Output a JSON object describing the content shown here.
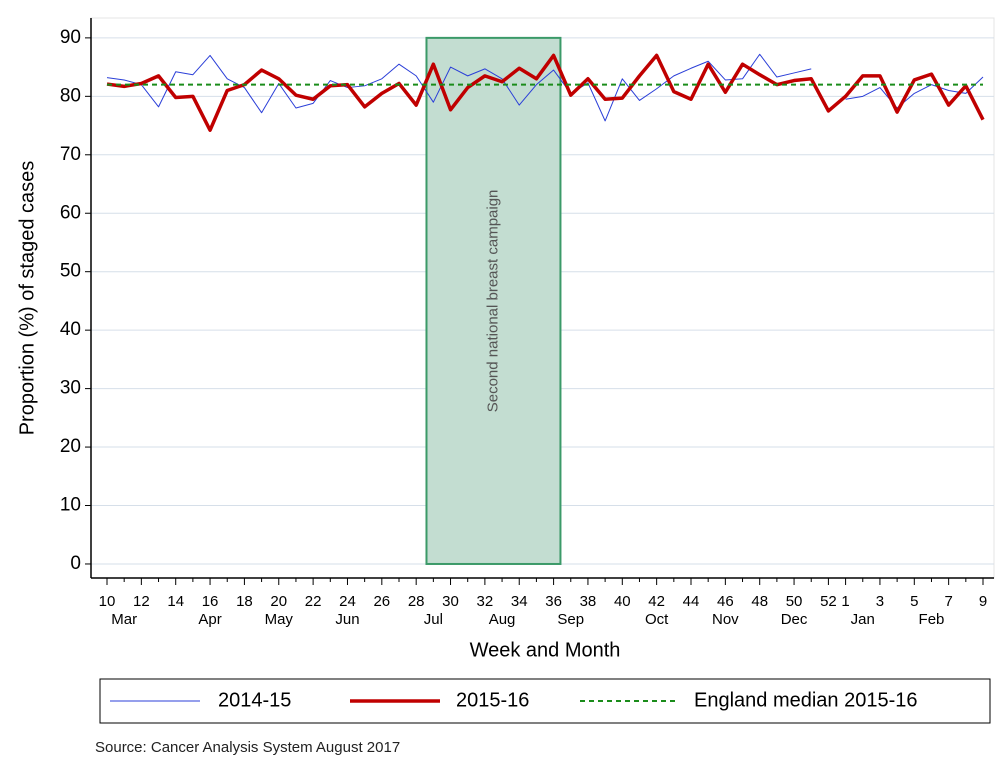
{
  "chart_data": {
    "type": "line",
    "x_label": "Week and Month",
    "y_label": "Proportion (%) of staged cases",
    "source": "Source: Cancer Analysis System August 2017",
    "categories": [
      "10",
      null,
      "12",
      null,
      "14",
      null,
      "16",
      null,
      "18",
      null,
      "20",
      null,
      "22",
      null,
      "24",
      null,
      "26",
      null,
      "28",
      null,
      "30",
      null,
      "32",
      null,
      "34",
      null,
      "36",
      null,
      "38",
      null,
      "40",
      null,
      "42",
      null,
      "44",
      null,
      "46",
      null,
      "48",
      null,
      "50",
      null,
      "52",
      "1",
      null,
      "3",
      null,
      "5",
      null,
      "7",
      null,
      "9"
    ],
    "months": [
      null,
      "Mar",
      null,
      null,
      null,
      null,
      "Apr",
      null,
      null,
      null,
      "May",
      null,
      null,
      null,
      "Jun",
      null,
      null,
      null,
      null,
      "Jul",
      null,
      null,
      null,
      "Aug",
      null,
      null,
      null,
      "Sep",
      null,
      null,
      null,
      null,
      "Oct",
      null,
      null,
      null,
      "Nov",
      null,
      null,
      null,
      "Dec",
      null,
      null,
      null,
      "Jan",
      null,
      null,
      null,
      "Feb",
      null,
      null,
      null
    ],
    "series": [
      {
        "name": "2014-15",
        "color": "#2b3fd8",
        "width": 1,
        "values": [
          83.2,
          82.8,
          82,
          78.2,
          84.2,
          83.7,
          87,
          83,
          81.5,
          77.2,
          82.2,
          78,
          78.8,
          82.7,
          81.5,
          81.8,
          83,
          85.5,
          83.5,
          79,
          85,
          83.5,
          84.7,
          83,
          78.5,
          82,
          84.5,
          80.5,
          82.3,
          75.8,
          83,
          79.3,
          81.3,
          83.5,
          84.8,
          86,
          82.8,
          83,
          87.2,
          83.3,
          84,
          84.7,
          null,
          79.5,
          80,
          81.5,
          78,
          80.5,
          82,
          81,
          80.5,
          83.3
        ]
      },
      {
        "name": "2015-16",
        "color": "#c00000",
        "width": 3.5,
        "values": [
          82.1,
          81.7,
          82.2,
          83.5,
          79.8,
          80,
          74.2,
          81,
          82,
          84.5,
          83,
          80.2,
          79.5,
          81.8,
          82,
          78.2,
          80.5,
          82.2,
          78.5,
          85.5,
          77.7,
          81.5,
          83.5,
          82.5,
          84.8,
          83,
          87,
          80.2,
          83,
          79.5,
          79.7,
          83.5,
          87,
          80.8,
          79.5,
          85.5,
          80.7,
          85.5,
          83.7,
          82,
          82.7,
          83,
          77.5,
          80,
          83.5,
          83.5,
          77.3,
          82.8,
          83.8,
          78.5,
          81.8,
          76
        ]
      },
      {
        "name": "England median 2015-16",
        "color": "#1a8c1a",
        "width": 2,
        "dashed": true,
        "value": 82
      }
    ],
    "annotation": {
      "text": "Second national breast campaign",
      "x_span": [
        18.6,
        26.4
      ],
      "y_span": [
        0,
        90
      ],
      "color": "#c3ddd1",
      "edge": "#3b9a68"
    },
    "ylim": [
      -2.4,
      93.4
    ],
    "yticks": [
      0,
      10,
      20,
      30,
      40,
      50,
      60,
      70,
      80,
      90
    ],
    "grid": true
  }
}
